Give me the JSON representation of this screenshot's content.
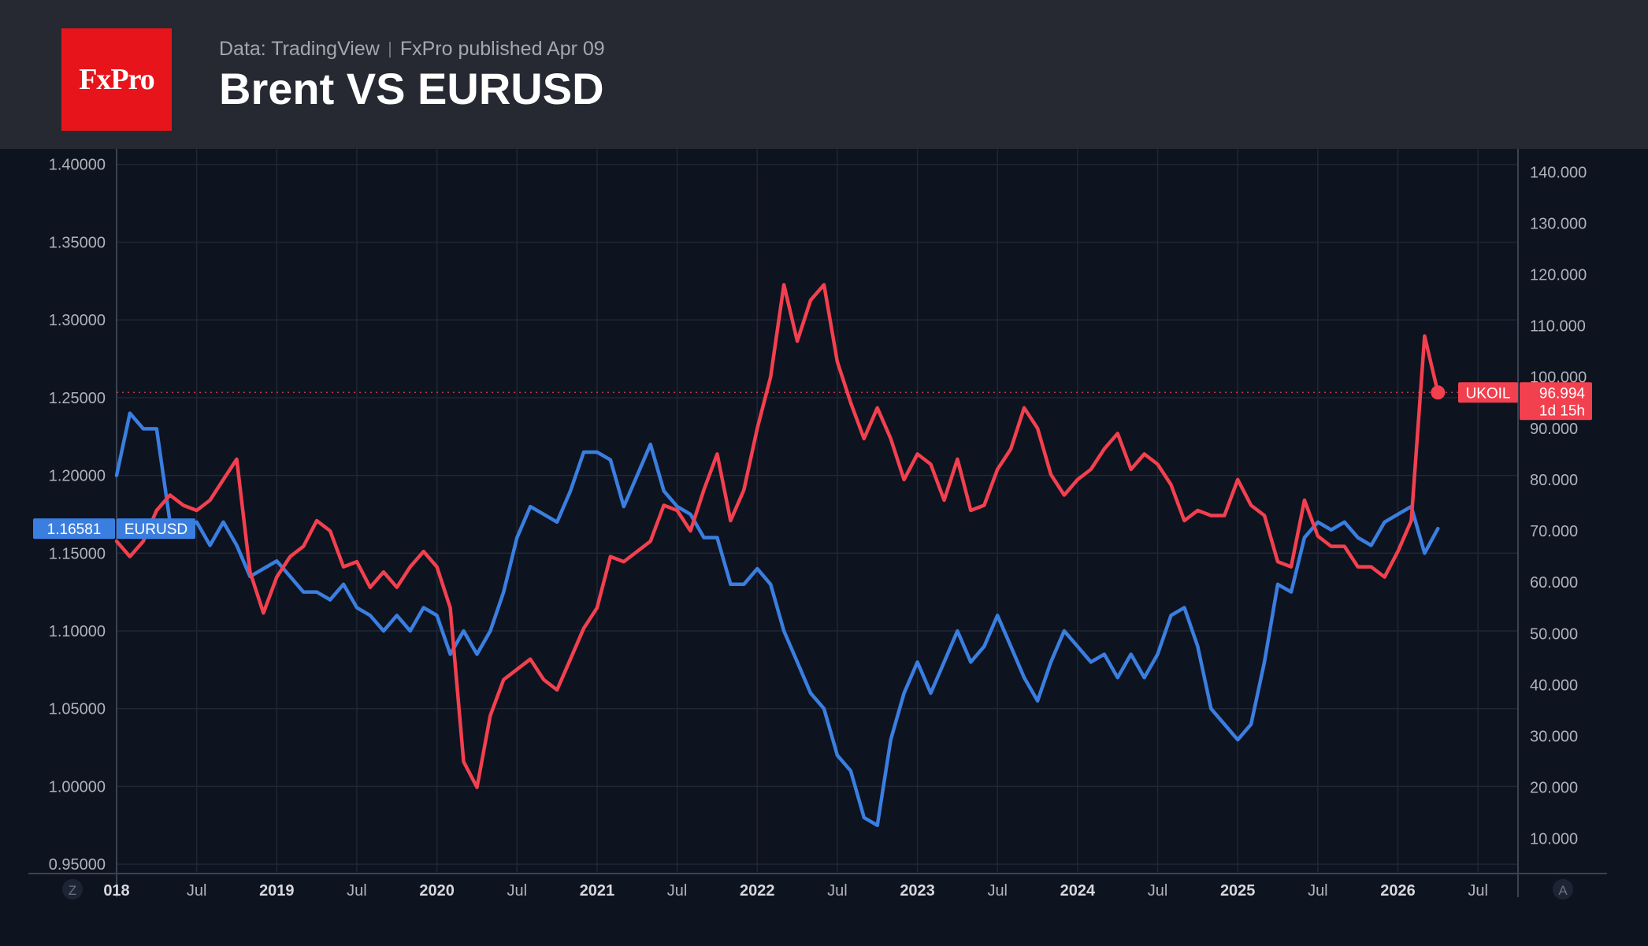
{
  "header": {
    "logo_text": "FxPro",
    "source": "Data: TradingView",
    "published": "FxPro published Apr 09",
    "title": "Brent VS EURUSD"
  },
  "colors": {
    "eurusd": "#3a7ee0",
    "ukoil": "#f2404f",
    "background": "#0e1320",
    "header": "#262932",
    "grid": "#1f2634",
    "axis_text": "#b0b3ba",
    "logo": "#e8141b"
  },
  "icons": {
    "left_corner": "Z",
    "right_corner": "A"
  },
  "chart_data": {
    "type": "line",
    "x_start": "2018-01",
    "x_end": "2026-10",
    "x_ticks": [
      {
        "label": "018",
        "date": "2018-01",
        "bold": true
      },
      {
        "label": "Jul",
        "date": "2018-07",
        "bold": false
      },
      {
        "label": "2019",
        "date": "2019-01",
        "bold": true
      },
      {
        "label": "Jul",
        "date": "2019-07",
        "bold": false
      },
      {
        "label": "2020",
        "date": "2020-01",
        "bold": true
      },
      {
        "label": "Jul",
        "date": "2020-07",
        "bold": false
      },
      {
        "label": "2021",
        "date": "2021-01",
        "bold": true
      },
      {
        "label": "Jul",
        "date": "2021-07",
        "bold": false
      },
      {
        "label": "2022",
        "date": "2022-01",
        "bold": true
      },
      {
        "label": "Jul",
        "date": "2022-07",
        "bold": false
      },
      {
        "label": "2023",
        "date": "2023-01",
        "bold": true
      },
      {
        "label": "Jul",
        "date": "2023-07",
        "bold": false
      },
      {
        "label": "2024",
        "date": "2024-01",
        "bold": true
      },
      {
        "label": "Jul",
        "date": "2024-07",
        "bold": false
      },
      {
        "label": "2025",
        "date": "2025-01",
        "bold": true
      },
      {
        "label": "Jul",
        "date": "2025-07",
        "bold": false
      },
      {
        "label": "2026",
        "date": "2026-01",
        "bold": true
      },
      {
        "label": "Jul",
        "date": "2026-07",
        "bold": false
      }
    ],
    "left_axis": {
      "ylim": [
        0.945,
        1.41
      ],
      "ticks": [
        "0.95000",
        "1.00000",
        "1.05000",
        "1.10000",
        "1.15000",
        "1.20000",
        "1.25000",
        "1.30000",
        "1.35000",
        "1.40000"
      ]
    },
    "right_axis": {
      "ylim": [
        3.5,
        144.5
      ],
      "ticks": [
        "10.000",
        "20.000",
        "30.000",
        "40.000",
        "50.000",
        "60.000",
        "70.000",
        "80.000",
        "90.000",
        "100.000",
        "110.000",
        "120.000",
        "130.000",
        "140.000"
      ]
    },
    "series": [
      {
        "name": "EURUSD",
        "axis": "left",
        "points": [
          [
            "2018-01",
            1.2
          ],
          [
            "2018-02",
            1.24
          ],
          [
            "2018-03",
            1.23
          ],
          [
            "2018-04",
            1.23
          ],
          [
            "2018-05",
            1.17
          ],
          [
            "2018-06",
            1.165
          ],
          [
            "2018-07",
            1.17
          ],
          [
            "2018-08",
            1.155
          ],
          [
            "2018-09",
            1.17
          ],
          [
            "2018-10",
            1.155
          ],
          [
            "2018-11",
            1.135
          ],
          [
            "2018-12",
            1.14
          ],
          [
            "2019-01",
            1.145
          ],
          [
            "2019-02",
            1.135
          ],
          [
            "2019-03",
            1.125
          ],
          [
            "2019-04",
            1.125
          ],
          [
            "2019-05",
            1.12
          ],
          [
            "2019-06",
            1.13
          ],
          [
            "2019-07",
            1.115
          ],
          [
            "2019-08",
            1.11
          ],
          [
            "2019-09",
            1.1
          ],
          [
            "2019-10",
            1.11
          ],
          [
            "2019-11",
            1.1
          ],
          [
            "2019-12",
            1.115
          ],
          [
            "2020-01",
            1.11
          ],
          [
            "2020-02",
            1.085
          ],
          [
            "2020-03",
            1.1
          ],
          [
            "2020-04",
            1.085
          ],
          [
            "2020-05",
            1.1
          ],
          [
            "2020-06",
            1.125
          ],
          [
            "2020-07",
            1.16
          ],
          [
            "2020-08",
            1.18
          ],
          [
            "2020-09",
            1.175
          ],
          [
            "2020-10",
            1.17
          ],
          [
            "2020-11",
            1.19
          ],
          [
            "2020-12",
            1.215
          ],
          [
            "2021-01",
            1.215
          ],
          [
            "2021-02",
            1.21
          ],
          [
            "2021-03",
            1.18
          ],
          [
            "2021-04",
            1.2
          ],
          [
            "2021-05",
            1.22
          ],
          [
            "2021-06",
            1.19
          ],
          [
            "2021-07",
            1.18
          ],
          [
            "2021-08",
            1.175
          ],
          [
            "2021-09",
            1.16
          ],
          [
            "2021-10",
            1.16
          ],
          [
            "2021-11",
            1.13
          ],
          [
            "2021-12",
            1.13
          ],
          [
            "2022-01",
            1.14
          ],
          [
            "2022-02",
            1.13
          ],
          [
            "2022-03",
            1.1
          ],
          [
            "2022-04",
            1.08
          ],
          [
            "2022-05",
            1.06
          ],
          [
            "2022-06",
            1.05
          ],
          [
            "2022-07",
            1.02
          ],
          [
            "2022-08",
            1.01
          ],
          [
            "2022-09",
            0.98
          ],
          [
            "2022-10",
            0.975
          ],
          [
            "2022-11",
            1.03
          ],
          [
            "2022-12",
            1.06
          ],
          [
            "2023-01",
            1.08
          ],
          [
            "2023-02",
            1.06
          ],
          [
            "2023-03",
            1.08
          ],
          [
            "2023-04",
            1.1
          ],
          [
            "2023-05",
            1.08
          ],
          [
            "2023-06",
            1.09
          ],
          [
            "2023-07",
            1.11
          ],
          [
            "2023-08",
            1.09
          ],
          [
            "2023-09",
            1.07
          ],
          [
            "2023-10",
            1.055
          ],
          [
            "2023-11",
            1.08
          ],
          [
            "2023-12",
            1.1
          ],
          [
            "2024-01",
            1.09
          ],
          [
            "2024-02",
            1.08
          ],
          [
            "2024-03",
            1.085
          ],
          [
            "2024-04",
            1.07
          ],
          [
            "2024-05",
            1.085
          ],
          [
            "2024-06",
            1.07
          ],
          [
            "2024-07",
            1.085
          ],
          [
            "2024-08",
            1.11
          ],
          [
            "2024-09",
            1.115
          ],
          [
            "2024-10",
            1.09
          ],
          [
            "2024-11",
            1.05
          ],
          [
            "2024-12",
            1.04
          ],
          [
            "2025-01",
            1.03
          ],
          [
            "2025-02",
            1.04
          ],
          [
            "2025-03",
            1.08
          ],
          [
            "2025-04",
            1.13
          ],
          [
            "2025-05",
            1.125
          ],
          [
            "2025-06",
            1.16
          ],
          [
            "2025-07",
            1.17
          ],
          [
            "2025-08",
            1.165
          ],
          [
            "2025-09",
            1.17
          ],
          [
            "2025-10",
            1.16
          ],
          [
            "2025-11",
            1.155
          ],
          [
            "2025-12",
            1.17
          ],
          [
            "2026-01",
            1.175
          ],
          [
            "2026-02",
            1.18
          ],
          [
            "2026-03",
            1.15
          ],
          [
            "2026-04",
            1.16581
          ]
        ],
        "last_label": "1.16581",
        "tag": "EURUSD"
      },
      {
        "name": "UKOIL",
        "axis": "right",
        "points": [
          [
            "2018-01",
            68
          ],
          [
            "2018-02",
            65
          ],
          [
            "2018-03",
            68
          ],
          [
            "2018-04",
            74
          ],
          [
            "2018-05",
            77
          ],
          [
            "2018-06",
            75
          ],
          [
            "2018-07",
            74
          ],
          [
            "2018-08",
            76
          ],
          [
            "2018-09",
            80
          ],
          [
            "2018-10",
            84
          ],
          [
            "2018-11",
            62
          ],
          [
            "2018-12",
            54
          ],
          [
            "2019-01",
            61
          ],
          [
            "2019-02",
            65
          ],
          [
            "2019-03",
            67
          ],
          [
            "2019-04",
            72
          ],
          [
            "2019-05",
            70
          ],
          [
            "2019-06",
            63
          ],
          [
            "2019-07",
            64
          ],
          [
            "2019-08",
            59
          ],
          [
            "2019-09",
            62
          ],
          [
            "2019-10",
            59
          ],
          [
            "2019-11",
            63
          ],
          [
            "2019-12",
            66
          ],
          [
            "2020-01",
            63
          ],
          [
            "2020-02",
            55
          ],
          [
            "2020-03",
            25
          ],
          [
            "2020-04",
            20
          ],
          [
            "2020-05",
            34
          ],
          [
            "2020-06",
            41
          ],
          [
            "2020-07",
            43
          ],
          [
            "2020-08",
            45
          ],
          [
            "2020-09",
            41
          ],
          [
            "2020-10",
            39
          ],
          [
            "2020-11",
            45
          ],
          [
            "2020-12",
            51
          ],
          [
            "2021-01",
            55
          ],
          [
            "2021-02",
            65
          ],
          [
            "2021-03",
            64
          ],
          [
            "2021-04",
            66
          ],
          [
            "2021-05",
            68
          ],
          [
            "2021-06",
            75
          ],
          [
            "2021-07",
            74
          ],
          [
            "2021-08",
            70
          ],
          [
            "2021-09",
            78
          ],
          [
            "2021-10",
            85
          ],
          [
            "2021-11",
            72
          ],
          [
            "2021-12",
            78
          ],
          [
            "2022-01",
            90
          ],
          [
            "2022-02",
            100
          ],
          [
            "2022-03",
            118
          ],
          [
            "2022-04",
            107
          ],
          [
            "2022-05",
            115
          ],
          [
            "2022-06",
            118
          ],
          [
            "2022-07",
            103
          ],
          [
            "2022-08",
            95
          ],
          [
            "2022-09",
            88
          ],
          [
            "2022-10",
            94
          ],
          [
            "2022-11",
            88
          ],
          [
            "2022-12",
            80
          ],
          [
            "2023-01",
            85
          ],
          [
            "2023-02",
            83
          ],
          [
            "2023-03",
            76
          ],
          [
            "2023-04",
            84
          ],
          [
            "2023-05",
            74
          ],
          [
            "2023-06",
            75
          ],
          [
            "2023-07",
            82
          ],
          [
            "2023-08",
            86
          ],
          [
            "2023-09",
            94
          ],
          [
            "2023-10",
            90
          ],
          [
            "2023-11",
            81
          ],
          [
            "2023-12",
            77
          ],
          [
            "2024-01",
            80
          ],
          [
            "2024-02",
            82
          ],
          [
            "2024-03",
            86
          ],
          [
            "2024-04",
            89
          ],
          [
            "2024-05",
            82
          ],
          [
            "2024-06",
            85
          ],
          [
            "2024-07",
            83
          ],
          [
            "2024-08",
            79
          ],
          [
            "2024-09",
            72
          ],
          [
            "2024-10",
            74
          ],
          [
            "2024-11",
            73
          ],
          [
            "2024-12",
            73
          ],
          [
            "2025-01",
            80
          ],
          [
            "2025-02",
            75
          ],
          [
            "2025-03",
            73
          ],
          [
            "2025-04",
            64
          ],
          [
            "2025-05",
            63
          ],
          [
            "2025-06",
            76
          ],
          [
            "2025-07",
            69
          ],
          [
            "2025-08",
            67
          ],
          [
            "2025-09",
            67
          ],
          [
            "2025-10",
            63
          ],
          [
            "2025-11",
            63
          ],
          [
            "2025-12",
            61
          ],
          [
            "2026-01",
            66
          ],
          [
            "2026-02",
            72
          ],
          [
            "2026-03",
            108
          ],
          [
            "2026-04",
            96.994
          ]
        ],
        "last_label": "96.994",
        "tag": "UKOIL",
        "countdown": "1d 15h"
      }
    ]
  }
}
